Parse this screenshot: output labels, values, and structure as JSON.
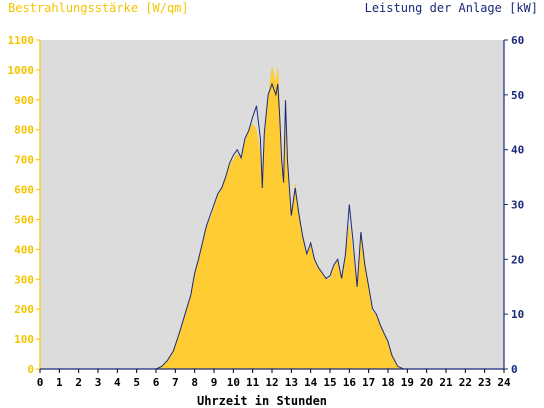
{
  "chart_data": {
    "type": "area",
    "title_left": "Bestrahlungsstärke [W/qm]",
    "title_right": "Leistung der Anlage [kW]",
    "xlabel": "Uhrzeit in Stunden",
    "xlim": [
      0,
      24
    ],
    "ylim_left": [
      0,
      1100
    ],
    "ylim_right": [
      0,
      60
    ],
    "x_ticks": [
      "0",
      "1",
      "2",
      "3",
      "4",
      "5",
      "6",
      "7",
      "8",
      "9",
      "10",
      "11",
      "12",
      "13",
      "14",
      "15",
      "16",
      "17",
      "18",
      "19",
      "20",
      "21",
      "22",
      "23",
      "24"
    ],
    "y_ticks_left": [
      "0",
      "100",
      "200",
      "300",
      "400",
      "500",
      "600",
      "700",
      "800",
      "900",
      "1000",
      "1100"
    ],
    "y_ticks_right": [
      "0",
      "10",
      "20",
      "30",
      "40",
      "50",
      "60"
    ],
    "grid": false,
    "colors": {
      "plot_bg": "#dcdcdc",
      "irradiance_fill": "#ffcc33",
      "power_line": "#1a2a7a",
      "left_axis": "#f5c400",
      "right_axis": "#1a2a7a"
    },
    "series": [
      {
        "axis": "left",
        "style": "area",
        "x": [
          0,
          6.0,
          6.3,
          6.6,
          6.9,
          7.2,
          7.5,
          7.8,
          8.0,
          8.2,
          8.4,
          8.6,
          8.8,
          9.0,
          9.2,
          9.4,
          9.6,
          9.8,
          10.0,
          10.2,
          10.4,
          10.6,
          10.8,
          11.0,
          11.2,
          11.4,
          11.5,
          11.6,
          11.8,
          12.0,
          12.2,
          12.3,
          12.4,
          12.5,
          12.6,
          12.7,
          12.8,
          13.0,
          13.2,
          13.4,
          13.6,
          13.8,
          14.0,
          14.2,
          14.4,
          14.6,
          14.8,
          15.0,
          15.2,
          15.4,
          15.6,
          15.8,
          16.0,
          16.2,
          16.4,
          16.6,
          16.8,
          17.0,
          17.2,
          17.4,
          17.6,
          17.8,
          18.0,
          18.2,
          18.5,
          18.8,
          19.0,
          24
        ],
        "y": [
          0,
          0,
          10,
          30,
          60,
          120,
          180,
          240,
          320,
          360,
          420,
          470,
          500,
          540,
          580,
          600,
          640,
          680,
          700,
          720,
          700,
          760,
          800,
          820,
          800,
          720,
          580,
          760,
          900,
          1010,
          960,
          1010,
          880,
          720,
          620,
          900,
          700,
          520,
          620,
          520,
          440,
          380,
          420,
          360,
          340,
          320,
          300,
          300,
          340,
          360,
          300,
          380,
          480,
          380,
          270,
          440,
          360,
          280,
          190,
          180,
          150,
          120,
          90,
          50,
          10,
          2,
          0,
          0
        ]
      },
      {
        "axis": "right",
        "style": "line",
        "x": [
          0,
          6.0,
          6.3,
          6.6,
          6.9,
          7.2,
          7.5,
          7.8,
          8.0,
          8.2,
          8.4,
          8.6,
          8.8,
          9.0,
          9.2,
          9.4,
          9.6,
          9.8,
          10.0,
          10.2,
          10.4,
          10.6,
          10.8,
          11.0,
          11.2,
          11.4,
          11.5,
          11.6,
          11.8,
          12.0,
          12.2,
          12.3,
          12.4,
          12.5,
          12.6,
          12.7,
          12.8,
          13.0,
          13.2,
          13.4,
          13.6,
          13.8,
          14.0,
          14.2,
          14.4,
          14.6,
          14.8,
          15.0,
          15.2,
          15.4,
          15.6,
          15.8,
          16.0,
          16.2,
          16.4,
          16.6,
          16.8,
          17.0,
          17.2,
          17.4,
          17.6,
          17.8,
          18.0,
          18.2,
          18.5,
          18.8,
          19.0,
          24
        ],
        "y": [
          0,
          0,
          0.5,
          1.6,
          3.3,
          6.5,
          10,
          13.5,
          17.5,
          20,
          23,
          26,
          28,
          30,
          32,
          33,
          35,
          37.5,
          39,
          40,
          38.5,
          42,
          43.5,
          46,
          48,
          42,
          33,
          43,
          50,
          52,
          50,
          52,
          46,
          38,
          34,
          49,
          38,
          28,
          33,
          28,
          24,
          21,
          23,
          20,
          18.5,
          17.5,
          16.5,
          17,
          19,
          20,
          16.5,
          21,
          30,
          23,
          15,
          25,
          19,
          15,
          11,
          10,
          8,
          6.5,
          5,
          2.5,
          0.5,
          0,
          0,
          0
        ]
      }
    ]
  }
}
